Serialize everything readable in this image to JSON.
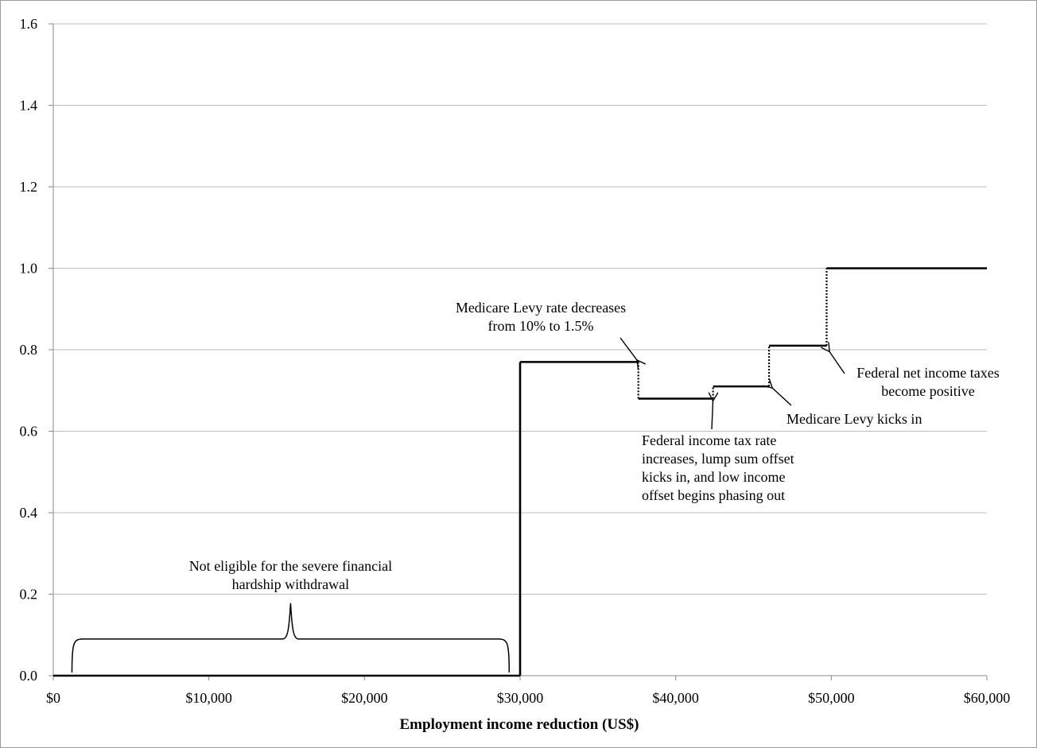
{
  "chart_data": {
    "type": "line",
    "title": "",
    "xlabel": "Employment income reduction (US$)",
    "ylabel": "",
    "xlim": [
      0,
      60000
    ],
    "ylim": [
      0,
      1.6
    ],
    "grid": true,
    "x_ticks": [
      0,
      10000,
      20000,
      30000,
      40000,
      50000,
      60000
    ],
    "x_tick_labels": [
      "$0",
      "$10,000",
      "$20,000",
      "$30,000",
      "$40,000",
      "$50,000",
      "$60,000"
    ],
    "y_ticks": [
      0,
      0.2,
      0.4,
      0.6,
      0.8,
      1.0,
      1.2,
      1.4,
      1.6
    ],
    "y_tick_labels": [
      "0.0",
      "0.2",
      "0.4",
      "0.6",
      "0.8",
      "1.0",
      "1.2",
      "1.4",
      "1.6"
    ],
    "series": [
      {
        "segments": [
          {
            "x": [
              0,
              30000
            ],
            "y": [
              0,
              0
            ],
            "style": "solid"
          },
          {
            "x": [
              30000,
              30000
            ],
            "y": [
              0,
              0.77
            ],
            "style": "solid"
          },
          {
            "x": [
              30000,
              37600
            ],
            "y": [
              0.77,
              0.77
            ],
            "style": "solid"
          },
          {
            "x": [
              37600,
              37600
            ],
            "y": [
              0.77,
              0.68
            ],
            "style": "dotted"
          },
          {
            "x": [
              37600,
              42400
            ],
            "y": [
              0.68,
              0.68
            ],
            "style": "solid"
          },
          {
            "x": [
              42400,
              42400
            ],
            "y": [
              0.68,
              0.71
            ],
            "style": "dotted"
          },
          {
            "x": [
              42400,
              46000
            ],
            "y": [
              0.71,
              0.71
            ],
            "style": "solid"
          },
          {
            "x": [
              46000,
              46000
            ],
            "y": [
              0.71,
              0.81
            ],
            "style": "dotted"
          },
          {
            "x": [
              46000,
              49700
            ],
            "y": [
              0.81,
              0.81
            ],
            "style": "solid"
          },
          {
            "x": [
              49700,
              49700
            ],
            "y": [
              0.81,
              1.0
            ],
            "style": "dotted"
          },
          {
            "x": [
              49700,
              60000
            ],
            "y": [
              1.0,
              1.0
            ],
            "style": "solid"
          }
        ]
      }
    ],
    "annotations": [
      {
        "lines": [
          "Not eligible  for the severe financial",
          "hardship withdrawal"
        ],
        "brace_x": [
          1200,
          29300
        ],
        "brace_y": 0.09
      },
      {
        "lines": [
          "Medicare Levy rate decreases",
          "from 10% to 1.5%"
        ],
        "arrow_to": [
          37600,
          0.77
        ]
      },
      {
        "lines": [
          "Federal income tax rate",
          "increases, lump sum offset",
          "kicks in, and low income",
          "offset begins phasing out"
        ],
        "arrow_to": [
          42400,
          0.68
        ]
      },
      {
        "lines": [
          "Medicare Levy kicks in"
        ],
        "arrow_to": [
          46100,
          0.71
        ]
      },
      {
        "lines": [
          "Federal net income taxes",
          "become positive"
        ],
        "arrow_to": [
          49800,
          0.8
        ]
      }
    ]
  }
}
